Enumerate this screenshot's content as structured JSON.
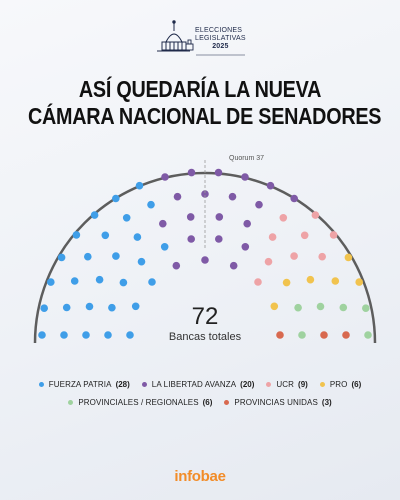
{
  "header": {
    "event_line1": "ELECCIONES",
    "event_line2": "LEGISLATIVAS",
    "event_year": "2025"
  },
  "title": {
    "line1": "ASÍ QUEDARÍA LA NUEVA",
    "line2": "CÁMARA NACIONAL DE SENADORES"
  },
  "chart_data": {
    "type": "parliament",
    "total_seats": 72,
    "total_label": "Bancas totales",
    "quorum_label": "Quorum 37",
    "quorum": 37,
    "parties": [
      {
        "name": "FUERZA PATRIA",
        "seats": 28,
        "color": "#3f9ee8"
      },
      {
        "name": "LA LIBERTAD AVANZA",
        "seats": 20,
        "color": "#7f5aa6"
      },
      {
        "name": "UCR",
        "seats": 9,
        "color": "#eea3a6"
      },
      {
        "name": "PRO",
        "seats": 6,
        "color": "#f1c34e"
      },
      {
        "name": "PROVINCIALES / REGIONALES",
        "seats": 6,
        "color": "#9fd29f"
      },
      {
        "name": "PROVINCIAS UNIDAS",
        "seats": 3,
        "color": "#d8694f"
      }
    ]
  },
  "footer": {
    "brand": "infobae"
  }
}
